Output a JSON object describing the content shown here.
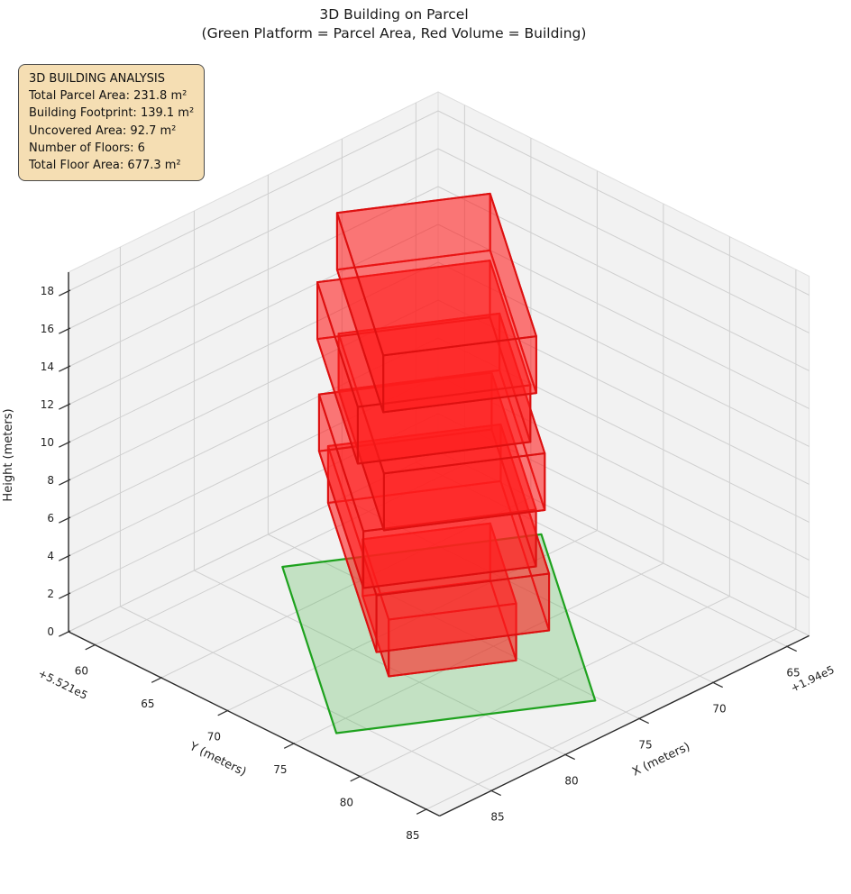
{
  "title": {
    "line1": "3D Building on Parcel",
    "line2": "(Green Platform = Parcel Area, Red Volume = Building)"
  },
  "info_box": {
    "title": "3D BUILDING ANALYSIS",
    "lines": [
      "Total Parcel Area: 231.8 m²",
      "Building Footprint: 139.1 m²",
      "Uncovered Area: 92.7 m²",
      "Number of Floors: 6",
      "Total Floor Area: 677.3 m²"
    ]
  },
  "chart_data": {
    "type": "3d-building-plot",
    "title": "3D Building on Parcel",
    "subtitle": "(Green Platform = Parcel Area, Red Volume = Building)",
    "axes": {
      "x": {
        "label": "X (meters)",
        "ticks": [
          65,
          70,
          75,
          80,
          85
        ],
        "offset_text": "+1.94e5",
        "lim": [
          63.5,
          88.5
        ]
      },
      "y": {
        "label": "Y (meters)",
        "ticks": [
          60,
          65,
          70,
          75,
          80,
          85
        ],
        "offset_text": "+5.521e5",
        "lim": [
          58,
          86
        ]
      },
      "z": {
        "label": "Height (meters)",
        "ticks": [
          0,
          2,
          4,
          6,
          8,
          10,
          12,
          14,
          16,
          18
        ],
        "lim": [
          0,
          19
        ]
      },
      "grid": true
    },
    "parcel": {
      "name": "parcel-platform",
      "area_m2": 231.8,
      "z": 0,
      "center": [
        76.0,
        72.0
      ],
      "size": [
        13.2,
        17.6
      ],
      "rotation_deg": -33
    },
    "building": {
      "footprint_m2": 139.1,
      "uncovered_m2": 92.7,
      "num_floors": 6,
      "total_floor_area_m2": 677.3,
      "floor_height_m": 3,
      "rotation_deg": -33,
      "floors": [
        {
          "floor": 1,
          "z0": 0,
          "z1": 3,
          "center": [
            75.6,
            71.6
          ],
          "size": [
            6.5,
            8.5
          ]
        },
        {
          "floor": 2,
          "z0": 3,
          "z1": 6,
          "center": [
            75.3,
            71.2
          ],
          "size": [
            8.8,
            15.8
          ]
        },
        {
          "floor": 3,
          "z0": 6,
          "z1": 9,
          "center": [
            75.6,
            70.7
          ],
          "size": [
            8.8,
            14.5
          ]
        },
        {
          "floor": 4,
          "z0": 9,
          "z1": 12,
          "center": [
            75.0,
            71.1
          ],
          "size": [
            8.2,
            14.8
          ]
        },
        {
          "floor": 5,
          "z0": 12,
          "z1": 15,
          "center": [
            75.4,
            70.2
          ],
          "size": [
            8.8,
            13.2
          ]
        },
        {
          "floor": 6,
          "z0": 15,
          "z1": 18,
          "center": [
            74.8,
            70.5
          ],
          "size": [
            7.8,
            15.1
          ]
        }
      ]
    },
    "colors": {
      "building_edge": "#dd1010",
      "building_face": "rgba(255,30,30,0.36)",
      "parcel_edge": "#1ea21e",
      "parcel_face": "rgba(70,180,70,0.27)",
      "info_box_bg": "#f5deb3",
      "pane": "#f2f2f2",
      "grid_line": "#cfcfcf",
      "axis_line": "#2b2b2b",
      "tick_text": "#222222"
    }
  }
}
